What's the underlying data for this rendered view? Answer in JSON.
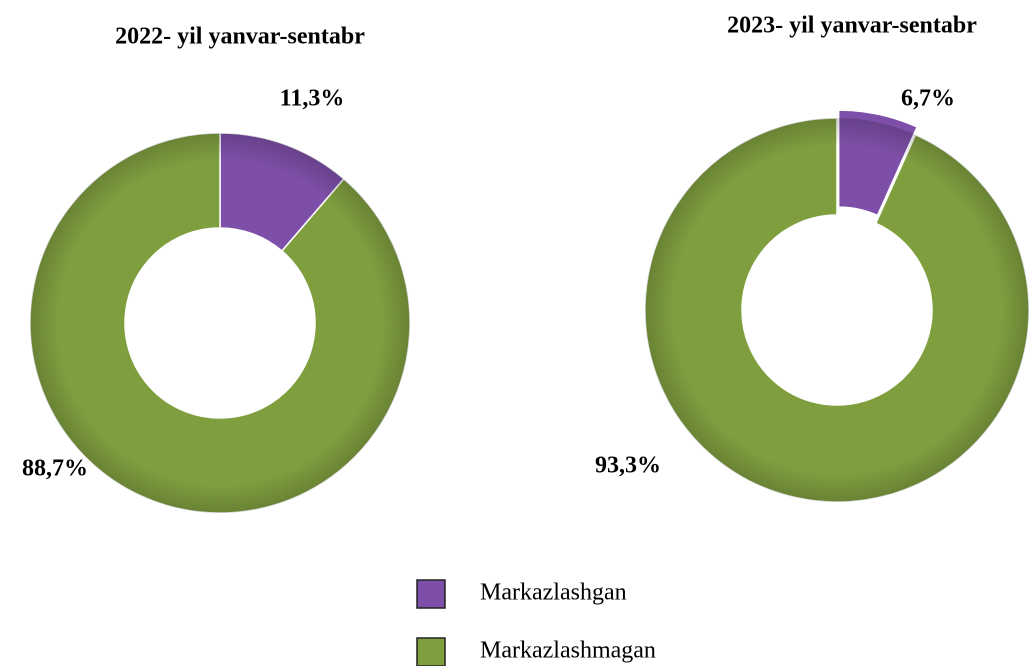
{
  "chart_data": [
    {
      "type": "donut",
      "title": "2022- yil yanvar-sentabr",
      "categories": [
        "Markazlashgan",
        "Markazlashmagan"
      ],
      "values": [
        11.3,
        88.7
      ],
      "value_labels": [
        "11,3%",
        "88,7%"
      ],
      "colors": [
        "#7e4fa8",
        "#7f9f3f"
      ],
      "legend": "bottom"
    },
    {
      "type": "donut",
      "title": "2023- yil yanvar-sentabr",
      "categories": [
        "Markazlashgan",
        "Markazlashmagan"
      ],
      "values": [
        6.7,
        93.3
      ],
      "value_labels": [
        "6,7%",
        "93,3%"
      ],
      "colors": [
        "#7e4fa8",
        "#7f9f3f"
      ]
    }
  ]
}
